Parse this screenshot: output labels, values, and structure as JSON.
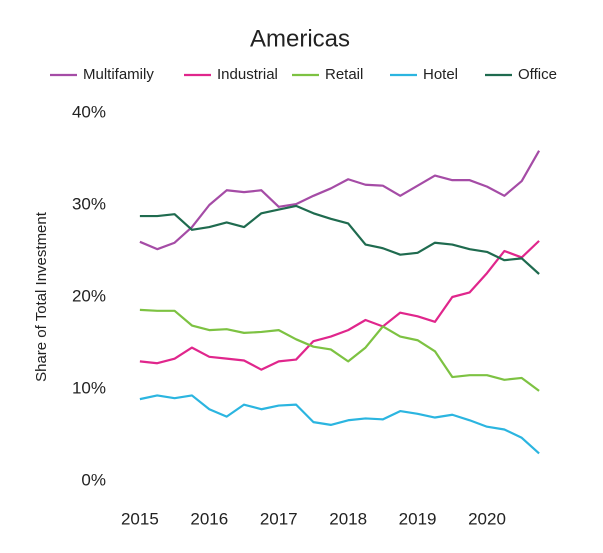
{
  "chart_data": {
    "type": "line",
    "title": "Americas",
    "y_label": "Share of Total Investment",
    "x": [
      2015,
      2015.25,
      2015.5,
      2015.75,
      2016,
      2016.25,
      2016.5,
      2016.75,
      2017,
      2017.25,
      2017.5,
      2017.75,
      2018,
      2018.25,
      2018.5,
      2018.75,
      2019,
      2019.25,
      2019.5,
      2019.75,
      2020,
      2020.25,
      2020.5,
      2020.75
    ],
    "series": [
      {
        "name": "Multifamily",
        "color": "#a54ca6",
        "values": [
          26.0,
          25.2,
          25.9,
          27.6,
          30.0,
          31.6,
          31.4,
          31.6,
          29.8,
          30.1,
          31.0,
          31.8,
          32.8,
          32.2,
          32.1,
          31.0,
          32.1,
          33.2,
          32.7,
          32.7,
          32.0,
          31.0,
          32.6,
          35.9
        ]
      },
      {
        "name": "Industrial",
        "color": "#e0268c",
        "values": [
          13.0,
          12.8,
          13.3,
          14.5,
          13.5,
          13.3,
          13.1,
          12.1,
          13.0,
          13.2,
          15.2,
          15.7,
          16.4,
          17.5,
          16.8,
          18.3,
          17.9,
          17.3,
          20.0,
          20.5,
          22.6,
          25.0,
          24.3,
          26.1
        ]
      },
      {
        "name": "Retail",
        "color": "#7dc242",
        "values": [
          18.6,
          18.5,
          18.5,
          16.9,
          16.4,
          16.5,
          16.1,
          16.2,
          16.4,
          15.4,
          14.6,
          14.3,
          13.0,
          14.5,
          16.8,
          15.7,
          15.3,
          14.1,
          11.3,
          11.5,
          11.5,
          11.0,
          11.2,
          9.8
        ]
      },
      {
        "name": "Hotel",
        "color": "#2bb5e0",
        "values": [
          8.9,
          9.3,
          9.0,
          9.3,
          7.8,
          7.0,
          8.3,
          7.8,
          8.2,
          8.3,
          6.4,
          6.1,
          6.6,
          6.8,
          6.7,
          7.6,
          7.3,
          6.9,
          7.2,
          6.6,
          5.9,
          5.6,
          4.7,
          3.0
        ]
      },
      {
        "name": "Office",
        "color": "#1f6b4f",
        "values": [
          28.8,
          28.8,
          29.0,
          27.3,
          27.6,
          28.1,
          27.6,
          29.1,
          29.5,
          29.9,
          29.1,
          28.5,
          28.0,
          25.7,
          25.3,
          24.6,
          24.8,
          25.9,
          25.7,
          25.2,
          24.9,
          24.0,
          24.2,
          22.5
        ]
      }
    ],
    "xlim": [
      2014.8,
      2020.9
    ],
    "xticks": [
      2015,
      2016,
      2017,
      2018,
      2019,
      2020
    ],
    "ylim": [
      0,
      40
    ],
    "yticks": [
      {
        "value": 0,
        "label": "0%"
      },
      {
        "value": 10,
        "label": "10%"
      },
      {
        "value": 20,
        "label": "20%"
      },
      {
        "value": 30,
        "label": "30%"
      },
      {
        "value": 40,
        "label": "40%"
      }
    ],
    "legend": "top",
    "grid": false
  }
}
